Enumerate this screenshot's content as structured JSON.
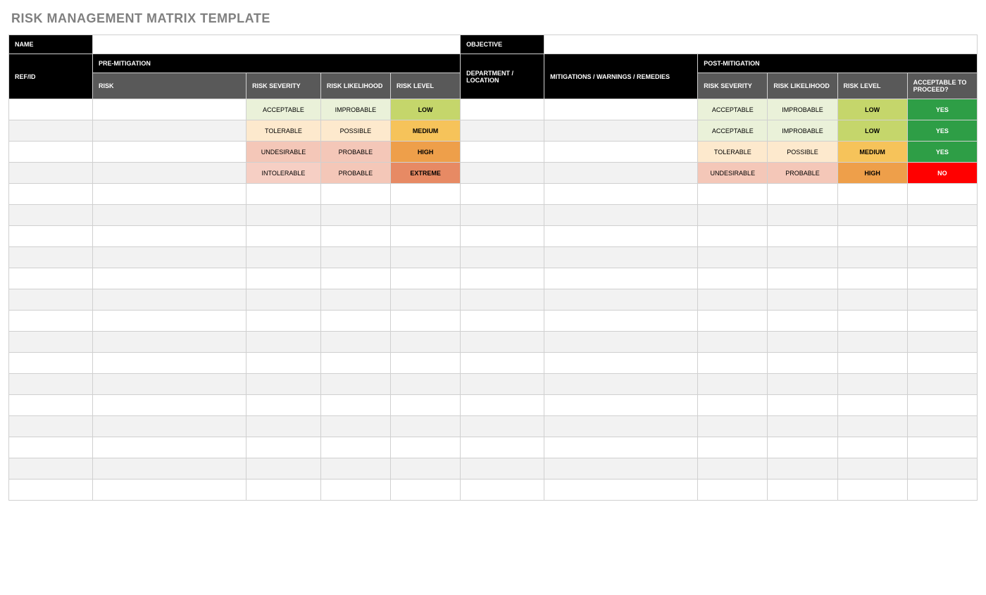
{
  "title": "RISK MANAGEMENT MATRIX TEMPLATE",
  "headers": {
    "name": "NAME",
    "objective": "OBJECTIVE",
    "refid": "REF/ID",
    "pre_mitigation": "PRE-MITIGATION",
    "dept_location": "DEPARTMENT / LOCATION",
    "mitigations": "MITIGATIONS / WARNINGS / REMEDIES",
    "post_mitigation": "POST-MITIGATION",
    "risk": "RISK",
    "risk_severity": "RISK SEVERITY",
    "risk_likelihood": "RISK LIKELIHOOD",
    "risk_level": "RISK LEVEL",
    "acceptable": "ACCEPTABLE TO PROCEED?"
  },
  "colors": {
    "severity": {
      "ACCEPTABLE": "#eaf1d9",
      "TOLERABLE": "#fde9cd",
      "UNDESIRABLE": "#f4c7b8",
      "INTOLERABLE": "#f6cfc4"
    },
    "likelihood": {
      "IMPROBABLE": "#eaf1d9",
      "POSSIBLE": "#fde9cd",
      "PROBABLE": "#f4c7b8"
    },
    "level": {
      "LOW": "#c5d66b",
      "MEDIUM": "#f6c35a",
      "HIGH": "#ee9f4a",
      "EXTREME": "#e78a64"
    },
    "yes_bg": "#2e9e46",
    "yes_fg": "#ffffff",
    "no_bg": "#ff0000",
    "no_fg": "#ffffff"
  },
  "rows": [
    {
      "pre": {
        "severity": "ACCEPTABLE",
        "likelihood": "IMPROBABLE",
        "level": "LOW"
      },
      "post": {
        "severity": "ACCEPTABLE",
        "likelihood": "IMPROBABLE",
        "level": "LOW"
      },
      "proceed": "YES"
    },
    {
      "pre": {
        "severity": "TOLERABLE",
        "likelihood": "POSSIBLE",
        "level": "MEDIUM"
      },
      "post": {
        "severity": "ACCEPTABLE",
        "likelihood": "IMPROBABLE",
        "level": "LOW"
      },
      "proceed": "YES"
    },
    {
      "pre": {
        "severity": "UNDESIRABLE",
        "likelihood": "PROBABLE",
        "level": "HIGH"
      },
      "post": {
        "severity": "TOLERABLE",
        "likelihood": "POSSIBLE",
        "level": "MEDIUM"
      },
      "proceed": "YES"
    },
    {
      "pre": {
        "severity": "INTOLERABLE",
        "likelihood": "PROBABLE",
        "level": "EXTREME"
      },
      "post": {
        "severity": "UNDESIRABLE",
        "likelihood": "PROBABLE",
        "level": "HIGH"
      },
      "proceed": "NO"
    }
  ],
  "empty_row_count": 15
}
